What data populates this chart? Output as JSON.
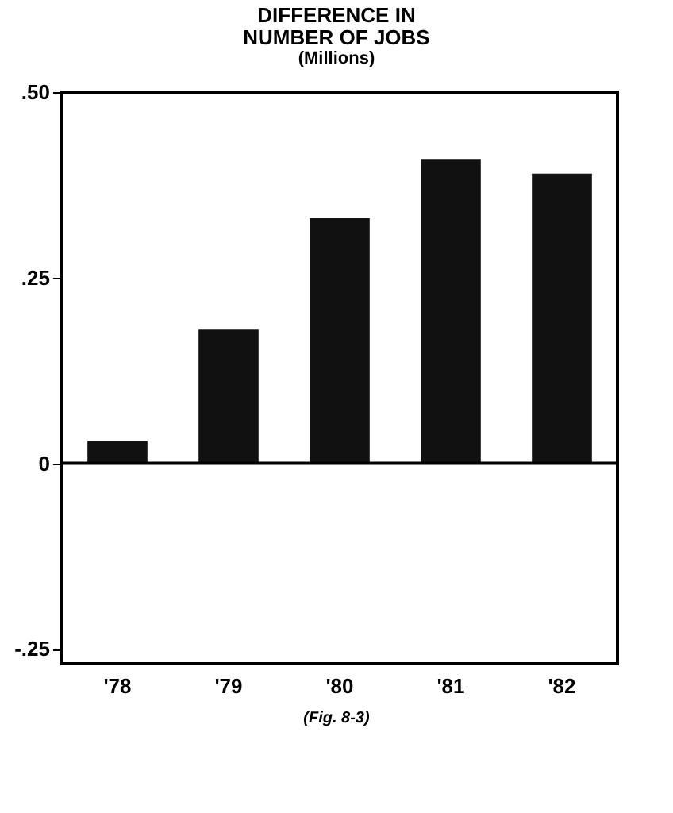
{
  "chart_data": {
    "type": "bar",
    "title": "DIFFERENCE IN NUMBER OF JOBS",
    "subtitle": "(Millions)",
    "categories": [
      "'78",
      "'79",
      "'80",
      "'81",
      "'82"
    ],
    "values": [
      0.03,
      0.18,
      0.33,
      0.41,
      0.39
    ],
    "color": "#111111",
    "ylim": [
      -0.27,
      0.5
    ],
    "yticks": [
      {
        "value": -0.25,
        "label": "-.25"
      },
      0,
      {
        "value": 0.25,
        "label": ".25"
      },
      {
        "value": 0.5,
        "label": ".50"
      }
    ],
    "ref_lines": [
      {
        "axis": "y",
        "value": 0
      }
    ],
    "annotations": [
      "(Fig. 8-3)"
    ]
  }
}
